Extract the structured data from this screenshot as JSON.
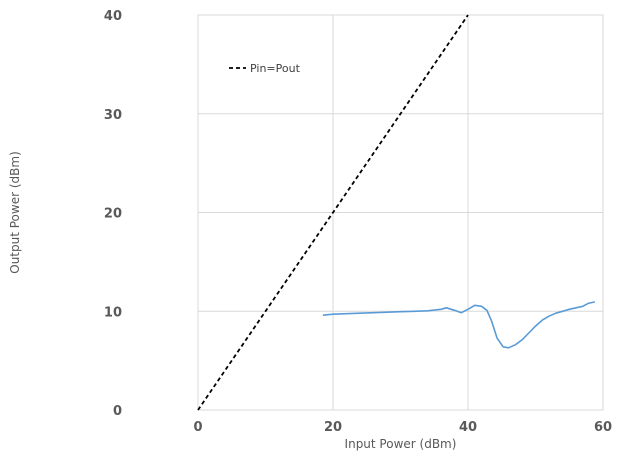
{
  "chart_data": {
    "type": "line",
    "xlabel": "Input Power (dBm)",
    "ylabel": "Output Power (dBm)",
    "xlim": [
      0,
      60
    ],
    "ylim": [
      0,
      40
    ],
    "xticks": [
      0,
      20,
      40,
      60
    ],
    "yticks": [
      0,
      10,
      20,
      30,
      40
    ],
    "grid": true,
    "legend_position": "top-left",
    "series": [
      {
        "name": "Pin=Pout",
        "style": "dashed",
        "color": "#000000",
        "x": [
          0,
          40
        ],
        "y": [
          0,
          40
        ]
      },
      {
        "name": "",
        "style": "solid",
        "color": "#5b9bd5",
        "x": [
          18.5,
          20,
          22,
          24,
          26,
          28,
          30,
          32,
          34,
          36,
          36.8,
          38,
          39,
          40,
          41,
          42,
          42.8,
          43.5,
          44.3,
          45.2,
          46,
          47,
          48,
          49,
          50,
          51,
          52,
          53,
          54,
          55,
          56,
          57,
          57.8,
          58.8
        ],
        "y": [
          9.6,
          9.7,
          9.75,
          9.8,
          9.85,
          9.9,
          9.95,
          10.0,
          10.05,
          10.2,
          10.35,
          10.1,
          9.85,
          10.2,
          10.6,
          10.5,
          10.1,
          9.0,
          7.3,
          6.4,
          6.3,
          6.6,
          7.1,
          7.8,
          8.5,
          9.1,
          9.5,
          9.8,
          10.0,
          10.2,
          10.35,
          10.5,
          10.8,
          10.95
        ]
      }
    ]
  }
}
